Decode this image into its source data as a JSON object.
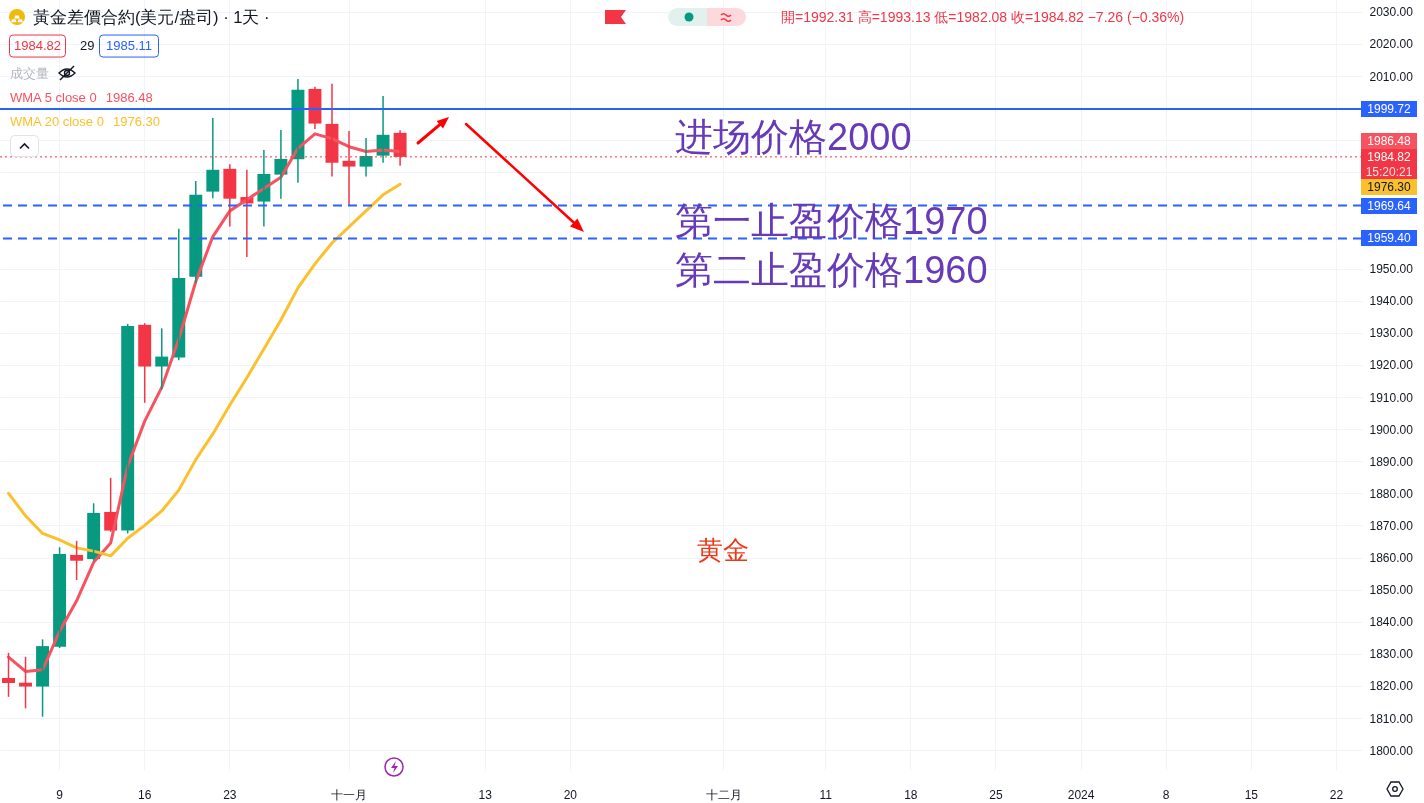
{
  "chart_data": {
    "type": "candlestick",
    "title": "黃金差價合約(美元/盎司) · 1天 ·",
    "subtitle": "開=1992.31 高=1993.13 低=1982.08 收=1984.82 −7.26 (−0.36%)",
    "categories": [
      null,
      null,
      null,
      "9",
      null,
      null,
      null,
      null,
      "16",
      null,
      null,
      null,
      null,
      "23",
      null,
      null,
      null,
      null,
      null,
      null,
      "十一月",
      null,
      null,
      null,
      null,
      null,
      null,
      null,
      "13",
      null,
      null,
      null,
      null,
      "20",
      null,
      null,
      null,
      null,
      null,
      null,
      null,
      null,
      "十二月",
      null,
      null,
      null,
      null,
      null,
      "11",
      null,
      null,
      null,
      null,
      "18",
      null,
      null,
      null,
      null,
      "25",
      null,
      null,
      null,
      null,
      "2024",
      null,
      null,
      null,
      null,
      "8",
      null,
      null,
      null,
      null,
      "15",
      null,
      null,
      null,
      null,
      "22",
      null
    ],
    "ohlc": [
      [
        1822.5,
        1830.3,
        1816.6,
        1820.9
      ],
      [
        1821.0,
        1829.1,
        1813.0,
        1819.8
      ],
      [
        1819.8,
        1834.5,
        1810.4,
        1832.4
      ],
      [
        1832.2,
        1863.2,
        1831.8,
        1861.1
      ],
      [
        1860.8,
        1865.2,
        1853.0,
        1859.0
      ],
      [
        1859.5,
        1876.9,
        1859.0,
        1873.9
      ],
      [
        1874.2,
        1884.8,
        1868.0,
        1868.4
      ],
      [
        1868.4,
        1932.8,
        1867.5,
        1932.1
      ],
      [
        1932.5,
        1933.0,
        1908.2,
        1919.5
      ],
      [
        1919.5,
        1931.4,
        1912.4,
        1922.6
      ],
      [
        1922.3,
        1962.4,
        1921.5,
        1947.1
      ],
      [
        1947.5,
        1977.3,
        1945.5,
        1973.0
      ],
      [
        1974.0,
        1996.9,
        1971.9,
        1980.8
      ],
      [
        1981.1,
        1982.5,
        1963.1,
        1971.8
      ],
      [
        1972.3,
        1980.8,
        1953.6,
        1970.3
      ],
      [
        1970.9,
        1987.0,
        1963.1,
        1979.5
      ],
      [
        1979.3,
        1993.2,
        1971.8,
        1984.2
      ],
      [
        1984.1,
        2009.1,
        1976.8,
        2005.7
      ],
      [
        2006.0,
        2006.7,
        1993.5,
        1995.2
      ],
      [
        1995.1,
        2007.6,
        1978.7,
        1983.0
      ],
      [
        1983.6,
        1992.9,
        1969.5,
        1981.8
      ],
      [
        1981.8,
        1990.7,
        1978.7,
        1985.1
      ],
      [
        1985.2,
        2003.8,
        1983.0,
        1991.7
      ],
      [
        1992.31,
        1993.13,
        1982.08,
        1984.82
      ],
      null,
      null,
      null,
      null,
      null,
      null,
      null,
      null,
      null,
      null,
      null,
      null,
      null,
      null,
      null,
      null,
      null,
      null,
      null,
      null,
      null,
      null,
      null,
      null,
      null,
      null,
      null,
      null,
      null,
      null,
      null,
      null,
      null,
      null,
      null,
      null,
      null,
      null,
      null,
      null,
      null,
      null,
      null,
      null,
      null,
      null,
      null,
      null,
      null,
      null,
      null,
      null,
      null,
      null,
      null,
      null
    ],
    "colors": [
      "#f23645",
      "#f23645",
      "#089981",
      "#089981",
      "#f23645",
      "#089981",
      "#f23645",
      "#089981",
      "#f23645",
      "#089981",
      "#089981",
      "#089981",
      "#089981",
      "#f23645",
      "#f23645",
      "#089981",
      "#089981",
      "#089981",
      "#f23645",
      "#f23645",
      "#f23645",
      "#089981",
      "#089981",
      "#f23645",
      null,
      null,
      null,
      null,
      null,
      null,
      null,
      null,
      null,
      null,
      null,
      null,
      null,
      null,
      null,
      null,
      null,
      null,
      null,
      null,
      null,
      null,
      null,
      null,
      null,
      null,
      null,
      null,
      null,
      null,
      null,
      null,
      null,
      null,
      null,
      null,
      null,
      null,
      null,
      null,
      null,
      null,
      null,
      null,
      null,
      null,
      null,
      null,
      null,
      null,
      null,
      null,
      null,
      null,
      null,
      null
    ],
    "series": [
      {
        "name": "WMA 5 close 0",
        "type": "line",
        "color": "#f7525f",
        "values": [
          1829.0,
          1824.5,
          1825.0,
          1837.0,
          1846.5,
          1858.5,
          1864.5,
          1888.5,
          1902.5,
          1913.0,
          1928.0,
          1946.0,
          1960.0,
          1968.0,
          1971.5,
          1975.0,
          1978.5,
          1987.5,
          1992.0,
          1990.5,
          1988.0,
          1986.5,
          1987.0,
          1986.48,
          null,
          null,
          null,
          null,
          null,
          null,
          null,
          null,
          null,
          null,
          null,
          null,
          null,
          null,
          null,
          null,
          null,
          null,
          null,
          null,
          null,
          null,
          null,
          null,
          null,
          null,
          null,
          null,
          null,
          null,
          null,
          null,
          null,
          null,
          null,
          null,
          null,
          null,
          null,
          null,
          null,
          null,
          null,
          null,
          null,
          null,
          null,
          null,
          null,
          null,
          null,
          null,
          null,
          null,
          null,
          null
        ]
      },
      {
        "name": "WMA 20 close 0",
        "type": "line",
        "color": "#fbc02d",
        "values": [
          1880.0,
          1873.0,
          1867.5,
          1865.5,
          1863.0,
          1862.0,
          1860.5,
          1866.0,
          1870.0,
          1874.5,
          1881.0,
          1890.5,
          1898.5,
          1907.5,
          1916.0,
          1925.0,
          1934.0,
          1944.0,
          1951.5,
          1958.0,
          1963.0,
          1968.0,
          1973.0,
          1976.3,
          null,
          null,
          null,
          null,
          null,
          null,
          null,
          null,
          null,
          null,
          null,
          null,
          null,
          null,
          null,
          null,
          null,
          null,
          null,
          null,
          null,
          null,
          null,
          null,
          null,
          null,
          null,
          null,
          null,
          null,
          null,
          null,
          null,
          null,
          null,
          null,
          null,
          null,
          null,
          null,
          null,
          null,
          null,
          null,
          null,
          null,
          null,
          null,
          null,
          null,
          null,
          null,
          null,
          null,
          null,
          null
        ]
      }
    ],
    "ylim": [
      1793.8,
      2033.7
    ],
    "yticks": [
      {
        "value": 1800,
        "label": "1800.00"
      },
      {
        "value": 1810,
        "label": "1810.00"
      },
      {
        "value": 1820,
        "label": "1820.00"
      },
      {
        "value": 1830,
        "label": "1830.00"
      },
      {
        "value": 1840,
        "label": "1840.00"
      },
      {
        "value": 1850,
        "label": "1850.00"
      },
      {
        "value": 1860,
        "label": "1860.00"
      },
      {
        "value": 1870,
        "label": "1870.00"
      },
      {
        "value": 1880,
        "label": "1880.00"
      },
      {
        "value": 1890,
        "label": "1890.00"
      },
      {
        "value": 1900,
        "label": "1900.00"
      },
      {
        "value": 1910,
        "label": "1910.00"
      },
      {
        "value": 1920,
        "label": "1920.00"
      },
      {
        "value": 1930,
        "label": "1930.00"
      },
      {
        "value": 1940,
        "label": "1940.00"
      },
      {
        "value": 1950,
        "label": "1950.00"
      },
      {
        "value": 1980,
        "label": null
      },
      {
        "value": 1990,
        "label": null
      },
      {
        "value": 2000,
        "label": null
      },
      {
        "value": 2010,
        "label": "2010.00"
      },
      {
        "value": 2020,
        "label": "2020.00"
      },
      {
        "value": 2030,
        "label": "2030.00"
      }
    ],
    "ref_lines": [
      {
        "axis": "y",
        "value": 1999.72,
        "label": "1999.72",
        "color": "#2962ff",
        "line_style": "solid"
      },
      {
        "axis": "y",
        "value": 1984.82,
        "label": "1984.82",
        "color": "#f23645",
        "line_style": "dotted"
      },
      {
        "axis": "y",
        "value": 1969.64,
        "label": "1969.64",
        "color": "#2962ff",
        "line_style": "dashed"
      },
      {
        "axis": "y",
        "value": 1959.4,
        "label": "1959.40",
        "color": "#2962ff",
        "line_style": "dashed"
      }
    ],
    "annotations": [
      "1984.82",
      "29",
      "1985.11",
      "成交量",
      "1986.48",
      "1976.30",
      "进场价格2000",
      "第一止盈价格1970",
      "第二止盈价格1960",
      "黄金",
      "1986.48",
      "1976.30",
      "15:20:21"
    ],
    "grid": true,
    "legend": "top left"
  }
}
